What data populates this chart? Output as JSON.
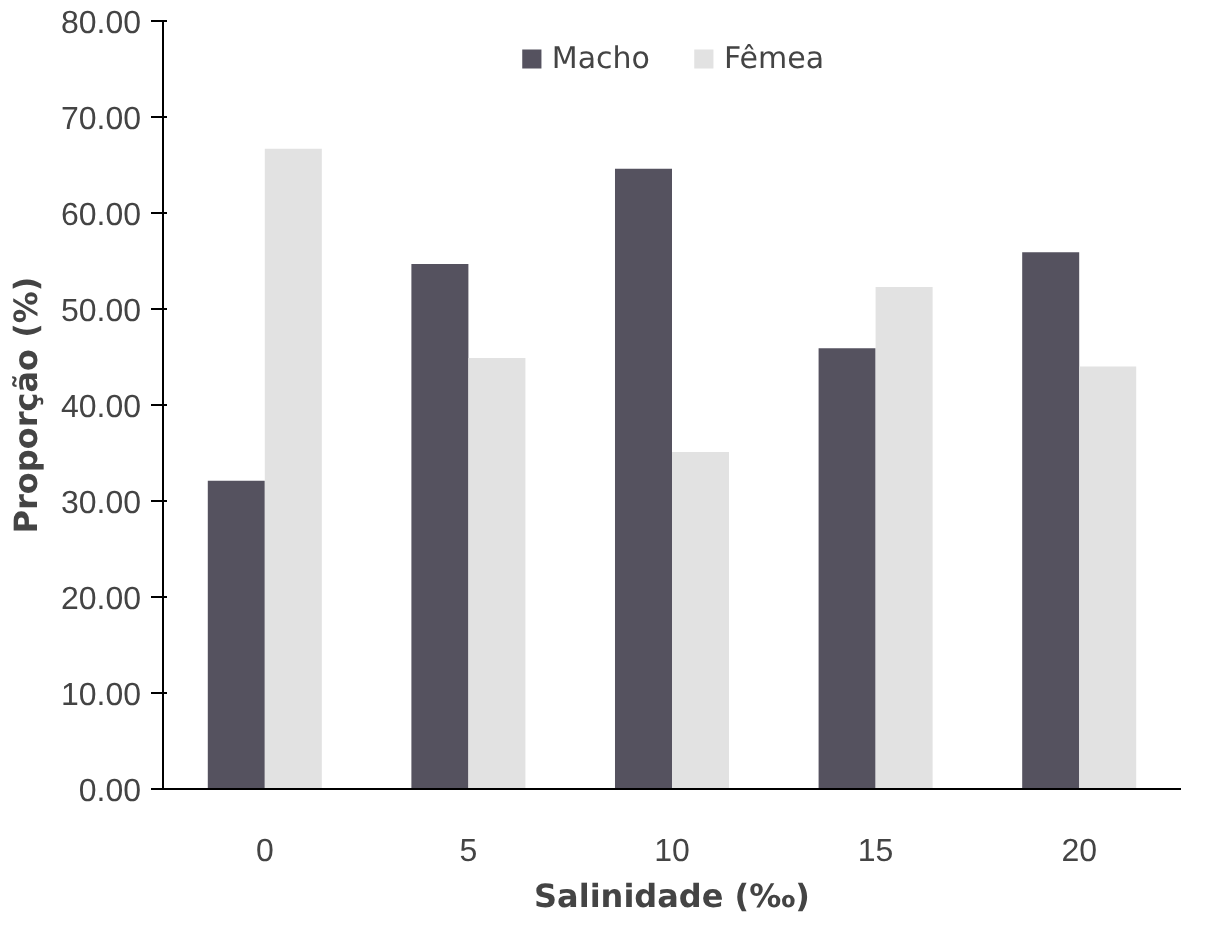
{
  "chart_data": {
    "type": "bar",
    "xlabel": "Salinidade (‰)",
    "ylabel": "Proporção (%)",
    "categories": [
      "0",
      "5",
      "10",
      "15",
      "20"
    ],
    "series": [
      {
        "name": "Macho",
        "color": "#55525f",
        "values": [
          32.1,
          54.7,
          64.6,
          45.9,
          55.9
        ]
      },
      {
        "name": "Fêmea",
        "color": "#e2e2e2",
        "values": [
          66.7,
          44.9,
          35.1,
          52.3,
          44.0
        ]
      }
    ],
    "ylim": [
      0,
      80
    ],
    "yticks": [
      {
        "value": 0,
        "label": "0.00"
      },
      {
        "value": 10,
        "label": "10.00"
      },
      {
        "value": 20,
        "label": "20.00"
      },
      {
        "value": 30,
        "label": "30.00"
      },
      {
        "value": 40,
        "label": "40.00"
      },
      {
        "value": 50,
        "label": "50.00"
      },
      {
        "value": 60,
        "label": "60.00"
      },
      {
        "value": 70,
        "label": "70.00"
      },
      {
        "value": 80,
        "label": "80.00"
      }
    ],
    "grid": false,
    "legend": "top"
  }
}
